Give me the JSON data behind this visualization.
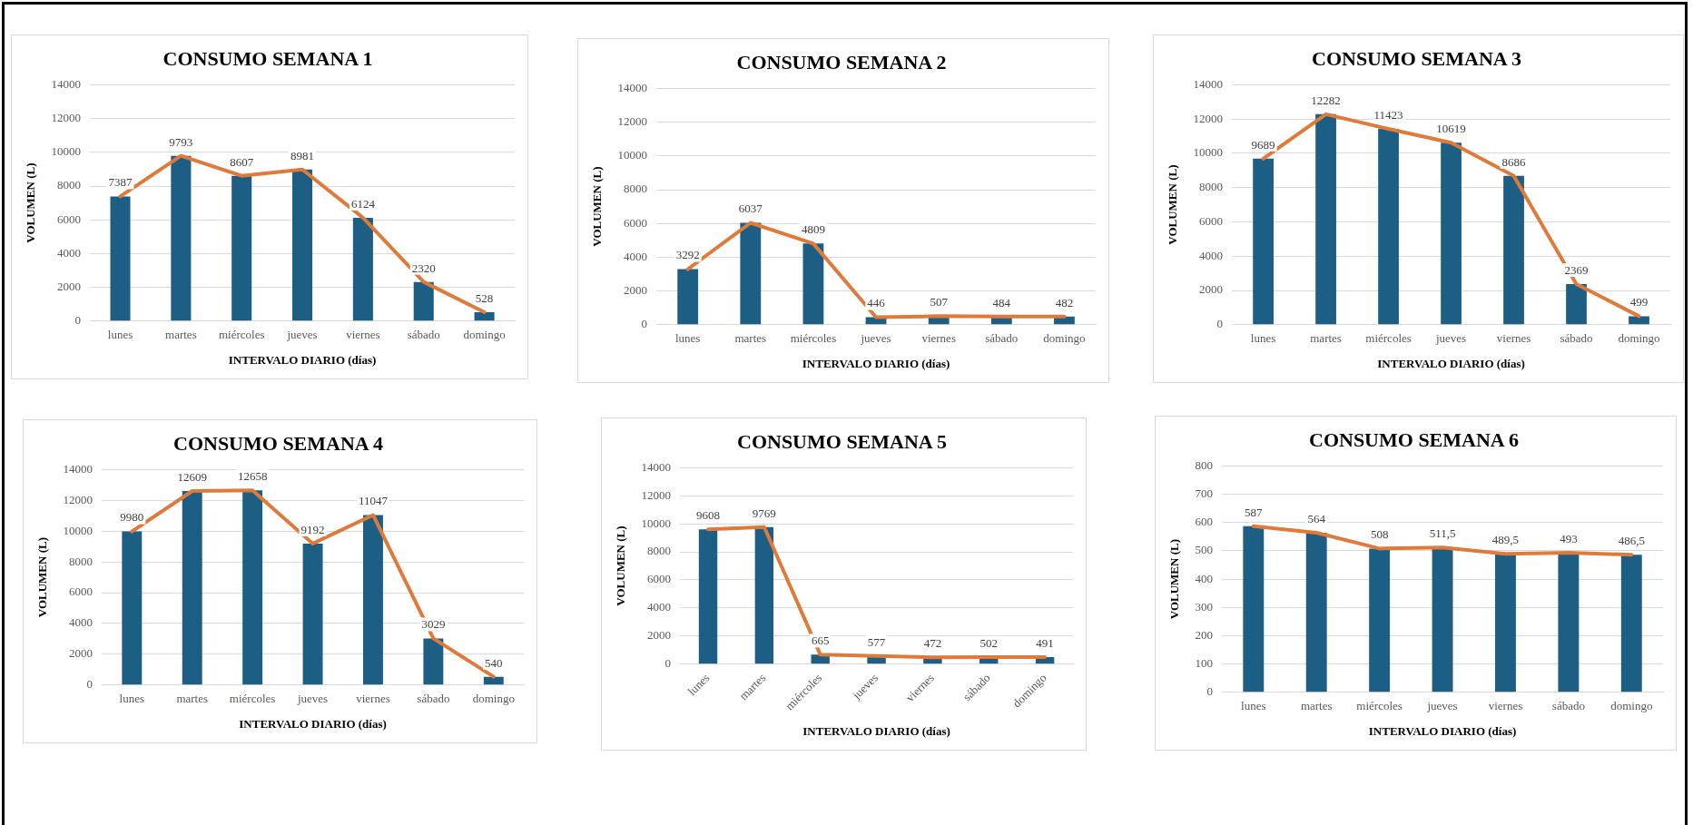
{
  "chart_data": [
    {
      "type": "bar",
      "title": "CONSUMO SEMANA 1",
      "xlabel": "INTERVALO DIARIO (días)",
      "ylabel": "VOLUMEN (L)",
      "categories": [
        "lunes",
        "martes",
        "miércoles",
        "jueves",
        "viernes",
        "sábado",
        "domingo"
      ],
      "series": [
        {
          "color": "#1d5e85",
          "values": [
            7387,
            9793,
            8607,
            8981,
            6124,
            2320,
            528
          ]
        },
        {
          "type": "line",
          "color": "#e07a3a",
          "values": [
            7387,
            9793,
            8607,
            8981,
            6124,
            2320,
            528
          ],
          "value_labels": [
            "7387",
            "9793",
            "8607",
            "8981",
            "6124",
            "2320",
            "528"
          ]
        }
      ],
      "ylim": [
        0,
        14000
      ],
      "yticks": [
        0,
        2000,
        4000,
        6000,
        8000,
        10000,
        12000,
        14000
      ],
      "grid": "y"
    },
    {
      "type": "bar",
      "title": "CONSUMO SEMANA 2",
      "xlabel": "INTERVALO DIARIO (días)",
      "ylabel": "VOLUMEN (L)",
      "categories": [
        "lunes",
        "martes",
        "miércoles",
        "jueves",
        "viernes",
        "sábado",
        "domingo"
      ],
      "series": [
        {
          "color": "#1d5e85",
          "values": [
            3292,
            6037,
            4809,
            446,
            507,
            484,
            482
          ]
        },
        {
          "type": "line",
          "color": "#e07a3a",
          "values": [
            3292,
            6037,
            4809,
            446,
            507,
            484,
            482
          ],
          "value_labels": [
            "3292",
            "6037",
            "4809",
            "446",
            "507",
            "484",
            "482"
          ]
        }
      ],
      "ylim": [
        0,
        14000
      ],
      "yticks": [
        0,
        2000,
        4000,
        6000,
        8000,
        10000,
        12000,
        14000
      ],
      "grid": "y"
    },
    {
      "type": "bar",
      "title": "CONSUMO SEMANA 3",
      "xlabel": "INTERVALO DIARIO (días)",
      "ylabel": "VOLUMEN (L)",
      "categories": [
        "lunes",
        "martes",
        "miércoles",
        "jueves",
        "viernes",
        "sábado",
        "domingo"
      ],
      "series": [
        {
          "color": "#1d5e85",
          "values": [
            9689,
            12282,
            11423,
            10619,
            8686,
            2369,
            499
          ]
        },
        {
          "type": "line",
          "color": "#e07a3a",
          "values": [
            9689,
            12282,
            11423,
            10619,
            8686,
            2369,
            499
          ],
          "value_labels": [
            "9689",
            "12282",
            "11423",
            "10619",
            "8686",
            "2369",
            "499"
          ]
        }
      ],
      "ylim": [
        0,
        14000
      ],
      "yticks": [
        0,
        2000,
        4000,
        6000,
        8000,
        10000,
        12000,
        14000
      ],
      "grid": "y"
    },
    {
      "type": "bar",
      "title": "CONSUMO SEMANA 4",
      "xlabel": "INTERVALO DIARIO (días)",
      "ylabel": "VOLUMEN (L)",
      "categories": [
        "lunes",
        "martes",
        "miércoles",
        "jueves",
        "viernes",
        "sábado",
        "domingo"
      ],
      "series": [
        {
          "color": "#1d5e85",
          "values": [
            9980,
            12609,
            12658,
            9192,
            11047,
            3029,
            540
          ]
        },
        {
          "type": "line",
          "color": "#e07a3a",
          "values": [
            9980,
            12609,
            12658,
            9192,
            11047,
            3029,
            540
          ],
          "value_labels": [
            "9980",
            "12609",
            "12658",
            "9192",
            "11047",
            "3029",
            "540"
          ]
        }
      ],
      "ylim": [
        0,
        14000
      ],
      "yticks": [
        0,
        2000,
        4000,
        6000,
        8000,
        10000,
        12000,
        14000
      ],
      "grid": "y"
    },
    {
      "type": "bar",
      "title": "CONSUMO SEMANA 5",
      "xlabel": "INTERVALO DIARIO (días)",
      "ylabel": "VOLUMEN (L)",
      "categories": [
        "lunes",
        "martes",
        "miércoles",
        "jueves",
        "viernes",
        "sábado",
        "domingo"
      ],
      "series": [
        {
          "color": "#1d5e85",
          "values": [
            9608,
            9769,
            665,
            577,
            472,
            502,
            491
          ]
        },
        {
          "type": "line",
          "color": "#e07a3a",
          "values": [
            9608,
            9769,
            665,
            577,
            472,
            502,
            491
          ],
          "value_labels": [
            "9608",
            "9769",
            "665",
            "577",
            "472",
            "502",
            "491"
          ]
        }
      ],
      "ylim": [
        0,
        14000
      ],
      "yticks": [
        0,
        2000,
        4000,
        6000,
        8000,
        10000,
        12000,
        14000
      ],
      "grid": "y"
    },
    {
      "type": "bar",
      "title": "CONSUMO SEMANA 6",
      "xlabel": "INTERVALO DIARIO (días)",
      "ylabel": "VOLUMEN (L)",
      "categories": [
        "lunes",
        "martes",
        "miércoles",
        "jueves",
        "viernes",
        "sábado",
        "domingo"
      ],
      "series": [
        {
          "color": "#1d5e85",
          "values": [
            587,
            564,
            508,
            511.5,
            489.5,
            493,
            486.5
          ]
        },
        {
          "type": "line",
          "color": "#e07a3a",
          "values": [
            587,
            564,
            508,
            511.5,
            489.5,
            493,
            486.5
          ],
          "value_labels": [
            "587",
            "564",
            "508",
            "511,5",
            "489,5",
            "493",
            "486,5"
          ]
        }
      ],
      "ylim": [
        0,
        800
      ],
      "yticks": [
        0,
        100,
        200,
        300,
        400,
        500,
        600,
        700,
        800
      ],
      "grid": "y"
    }
  ]
}
